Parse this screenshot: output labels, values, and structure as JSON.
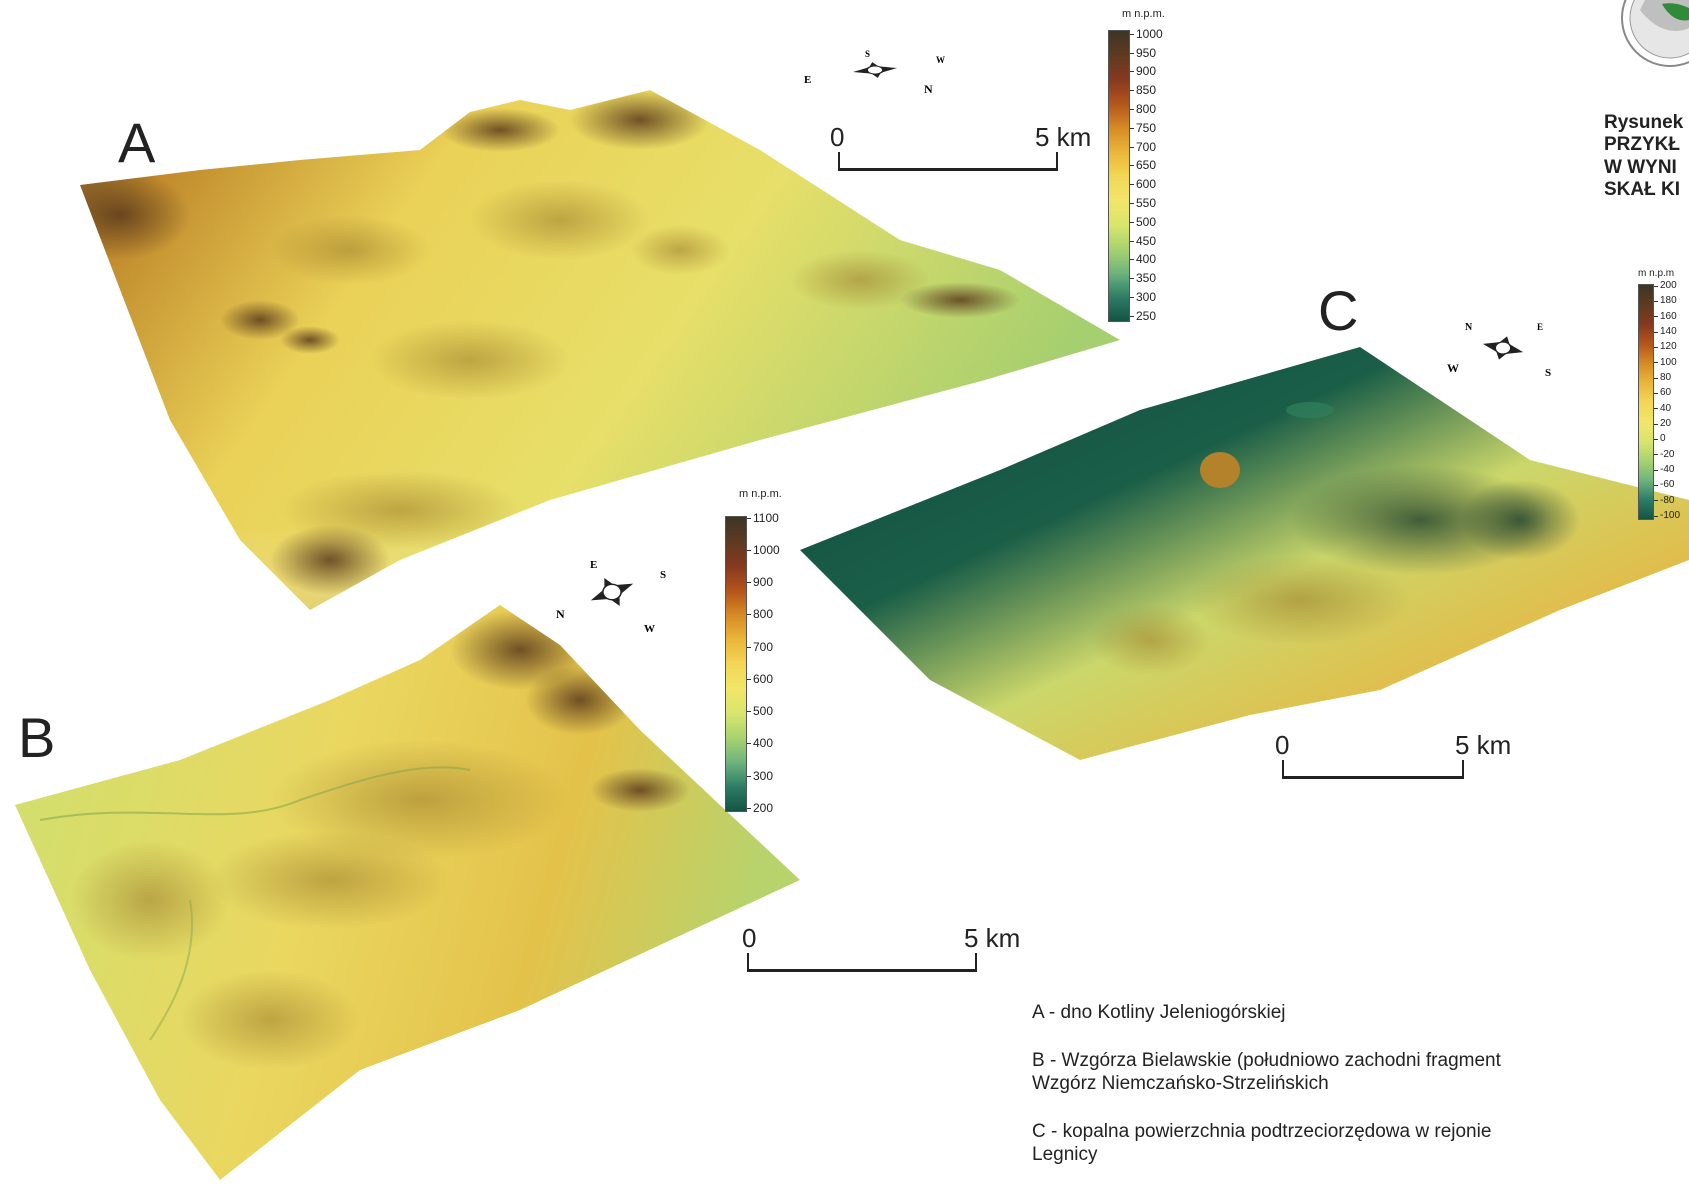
{
  "panels": {
    "a": {
      "letter": "A",
      "colorbar": {
        "title": "m n.p.m.",
        "ticks": [
          "1000",
          "950",
          "900",
          "850",
          "800",
          "750",
          "700",
          "650",
          "600",
          "550",
          "500",
          "450",
          "400",
          "350",
          "300",
          "250"
        ],
        "colors": [
          "#3d3524",
          "#5e3a22",
          "#86391f",
          "#b3541c",
          "#d58a24",
          "#e9b53a",
          "#f2d656",
          "#f3e56a",
          "#d9e56d",
          "#a9d36f",
          "#6fb47c",
          "#2e7d66",
          "#145444"
        ]
      },
      "scalebar": {
        "start": "0",
        "end": "5 km"
      },
      "compass": {
        "letters": [
          "S",
          "E",
          "N",
          "W"
        ]
      }
    },
    "b": {
      "letter": "B",
      "colorbar": {
        "title": "m n.p.m.",
        "ticks": [
          "1100",
          "1000",
          "900",
          "800",
          "700",
          "600",
          "500",
          "400",
          "300",
          "200"
        ],
        "colors": [
          "#3d3524",
          "#5e3a22",
          "#86391f",
          "#b3541c",
          "#d58a24",
          "#e9b53a",
          "#f2d656",
          "#f3e56a",
          "#d9e56d",
          "#a9d36f",
          "#6fb47c",
          "#2e7d66",
          "#145444"
        ]
      },
      "scalebar": {
        "start": "0",
        "end": "5 km"
      },
      "compass": {
        "letters": [
          "E",
          "S",
          "W",
          "N"
        ]
      }
    },
    "c": {
      "letter": "C",
      "colorbar": {
        "title": "m n.p.m",
        "ticks": [
          "200",
          "180",
          "160",
          "140",
          "120",
          "100",
          "80",
          "60",
          "40",
          "20",
          "0",
          "-20",
          "-40",
          "-60",
          "-80",
          "-100"
        ],
        "colors": [
          "#3d3524",
          "#5e3a22",
          "#86391f",
          "#b3541c",
          "#d58a24",
          "#e9b53a",
          "#f2d656",
          "#f3e56a",
          "#d9e56d",
          "#a9d36f",
          "#6fb47c",
          "#2e7d66",
          "#145444"
        ]
      },
      "scalebar": {
        "start": "0",
        "end": "5 km"
      },
      "compass": {
        "letters": [
          "N",
          "E",
          "S",
          "W"
        ]
      }
    }
  },
  "side_title": "Rysunek\nPRZYKŁ\nW WYNI\nSKAŁ KI",
  "legend": [
    "A - dno Kotliny Jeleniogórskiej",
    "B - Wzgórza Bielawskie (południowo zachodni fragment Wzgórz Niemczańsko-Strzelińskich",
    "C - kopalna powierzchnia podtrzeciorzędowa w rejonie Legnicy"
  ],
  "logo_icon": "map-emblem-icon"
}
